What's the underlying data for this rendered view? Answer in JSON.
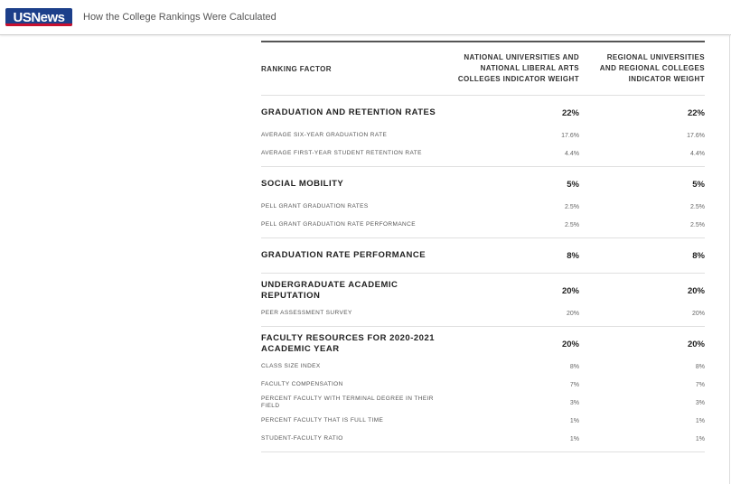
{
  "header": {
    "logo_text": "USNews",
    "page_title": "How the College Rankings Were Calculated",
    "brand_colors": {
      "navy": "#1c3f8a",
      "red": "#c8102e"
    }
  },
  "table": {
    "columns": {
      "factor": "RANKING FACTOR",
      "national_line1": "NATIONAL UNIVERSITIES AND",
      "national_line2": "NATIONAL LIBERAL ARTS",
      "national_line3": "COLLEGES INDICATOR WEIGHT",
      "regional_line1": "REGIONAL UNIVERSITIES",
      "regional_line2": "AND REGIONAL COLLEGES",
      "regional_line3": "INDICATOR WEIGHT"
    },
    "sections": [
      {
        "label": "GRADUATION AND RETENTION RATES",
        "national": "22%",
        "regional": "22%",
        "items": [
          {
            "label": "AVERAGE SIX-YEAR GRADUATION RATE",
            "national": "17.6%",
            "regional": "17.6%"
          },
          {
            "label": "AVERAGE FIRST-YEAR STUDENT RETENTION RATE",
            "national": "4.4%",
            "regional": "4.4%"
          }
        ]
      },
      {
        "label": "SOCIAL MOBILITY",
        "national": "5%",
        "regional": "5%",
        "items": [
          {
            "label": "PELL GRANT GRADUATION RATES",
            "national": "2.5%",
            "regional": "2.5%"
          },
          {
            "label": "PELL GRANT GRADUATION RATE PERFORMANCE",
            "national": "2.5%",
            "regional": "2.5%"
          }
        ]
      },
      {
        "label": "GRADUATION RATE PERFORMANCE",
        "national": "8%",
        "regional": "8%",
        "items": []
      },
      {
        "label": "UNDERGRADUATE ACADEMIC REPUTATION",
        "national": "20%",
        "regional": "20%",
        "items": [
          {
            "label": "PEER ASSESSMENT SURVEY",
            "national": "20%",
            "regional": "20%"
          }
        ]
      },
      {
        "label": "FACULTY RESOURCES FOR 2020-2021 ACADEMIC YEAR",
        "national": "20%",
        "regional": "20%",
        "items": [
          {
            "label": "CLASS SIZE INDEX",
            "national": "8%",
            "regional": "8%"
          },
          {
            "label": "FACULTY COMPENSATION",
            "national": "7%",
            "regional": "7%"
          },
          {
            "label": "PERCENT FACULTY WITH TERMINAL DEGREE IN THEIR FIELD",
            "national": "3%",
            "regional": "3%"
          },
          {
            "label": "PERCENT FACULTY THAT IS FULL TIME",
            "national": "1%",
            "regional": "1%"
          },
          {
            "label": "STUDENT-FACULTY RATIO",
            "national": "1%",
            "regional": "1%"
          }
        ]
      }
    ]
  }
}
